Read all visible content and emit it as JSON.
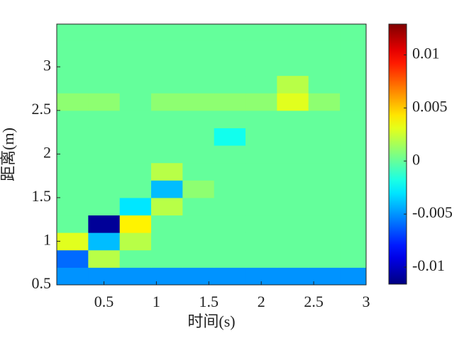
{
  "chart_data": {
    "type": "heatmap",
    "x_label": "时间(s)",
    "y_label": "距离(m)",
    "x": [
      0.2,
      0.5,
      0.8,
      1.1,
      1.4,
      1.7,
      2.0,
      2.3,
      2.6,
      2.9
    ],
    "y": [
      0.6,
      0.8,
      1.0,
      1.2,
      1.4,
      1.6,
      1.8,
      2.0,
      2.2,
      2.4,
      2.6,
      2.8,
      3.0,
      3.2,
      3.4
    ],
    "z": [
      [
        -0.005,
        -0.005,
        -0.005,
        -0.005,
        -0.005,
        -0.005,
        -0.005,
        -0.005,
        -0.005,
        -0.005
      ],
      [
        -0.006,
        0.002,
        0,
        0,
        0,
        0,
        0,
        0,
        0,
        0
      ],
      [
        0.003,
        -0.004,
        0.002,
        0,
        0,
        0,
        0,
        0,
        0,
        0
      ],
      [
        0,
        -0.011,
        0.004,
        0,
        0,
        0,
        0,
        0,
        0,
        0
      ],
      [
        0,
        0,
        -0.003,
        0.002,
        0,
        0,
        0,
        0,
        0,
        0
      ],
      [
        0,
        0,
        0,
        -0.004,
        0.001,
        0,
        0,
        0,
        0,
        0
      ],
      [
        0,
        0,
        0,
        0.002,
        0,
        0,
        0,
        0,
        0,
        0
      ],
      [
        0,
        0,
        0,
        0,
        0,
        0,
        0,
        0,
        0,
        0
      ],
      [
        0,
        0,
        0,
        0,
        0,
        -0.002,
        0,
        0,
        0,
        0
      ],
      [
        0,
        0,
        0,
        0,
        0,
        0,
        0,
        0,
        0,
        0
      ],
      [
        0.001,
        0.001,
        0,
        0.001,
        0.001,
        0.001,
        0.001,
        0.003,
        0.001,
        0
      ],
      [
        0,
        0,
        0,
        0,
        0,
        0,
        0,
        0.002,
        0,
        0
      ],
      [
        0,
        0,
        0,
        0,
        0,
        0,
        0,
        0,
        0,
        0
      ],
      [
        0,
        0,
        0,
        0,
        0,
        0,
        0,
        0,
        0,
        0
      ],
      [
        0,
        0,
        0,
        0,
        0,
        0,
        0,
        0,
        0,
        0
      ]
    ],
    "xlim": [
      0.05,
      3
    ],
    "ylim": [
      0.5,
      3.49
    ],
    "xticks": [
      0.5,
      1,
      1.5,
      2,
      2.5,
      3
    ],
    "yticks": [
      0.5,
      1,
      1.5,
      2,
      2.5,
      3
    ],
    "clim": [
      -0.0116,
      0.0129
    ],
    "cticks": [
      -0.01,
      -0.005,
      0,
      0.005,
      0.01
    ],
    "colormap": "jet"
  }
}
